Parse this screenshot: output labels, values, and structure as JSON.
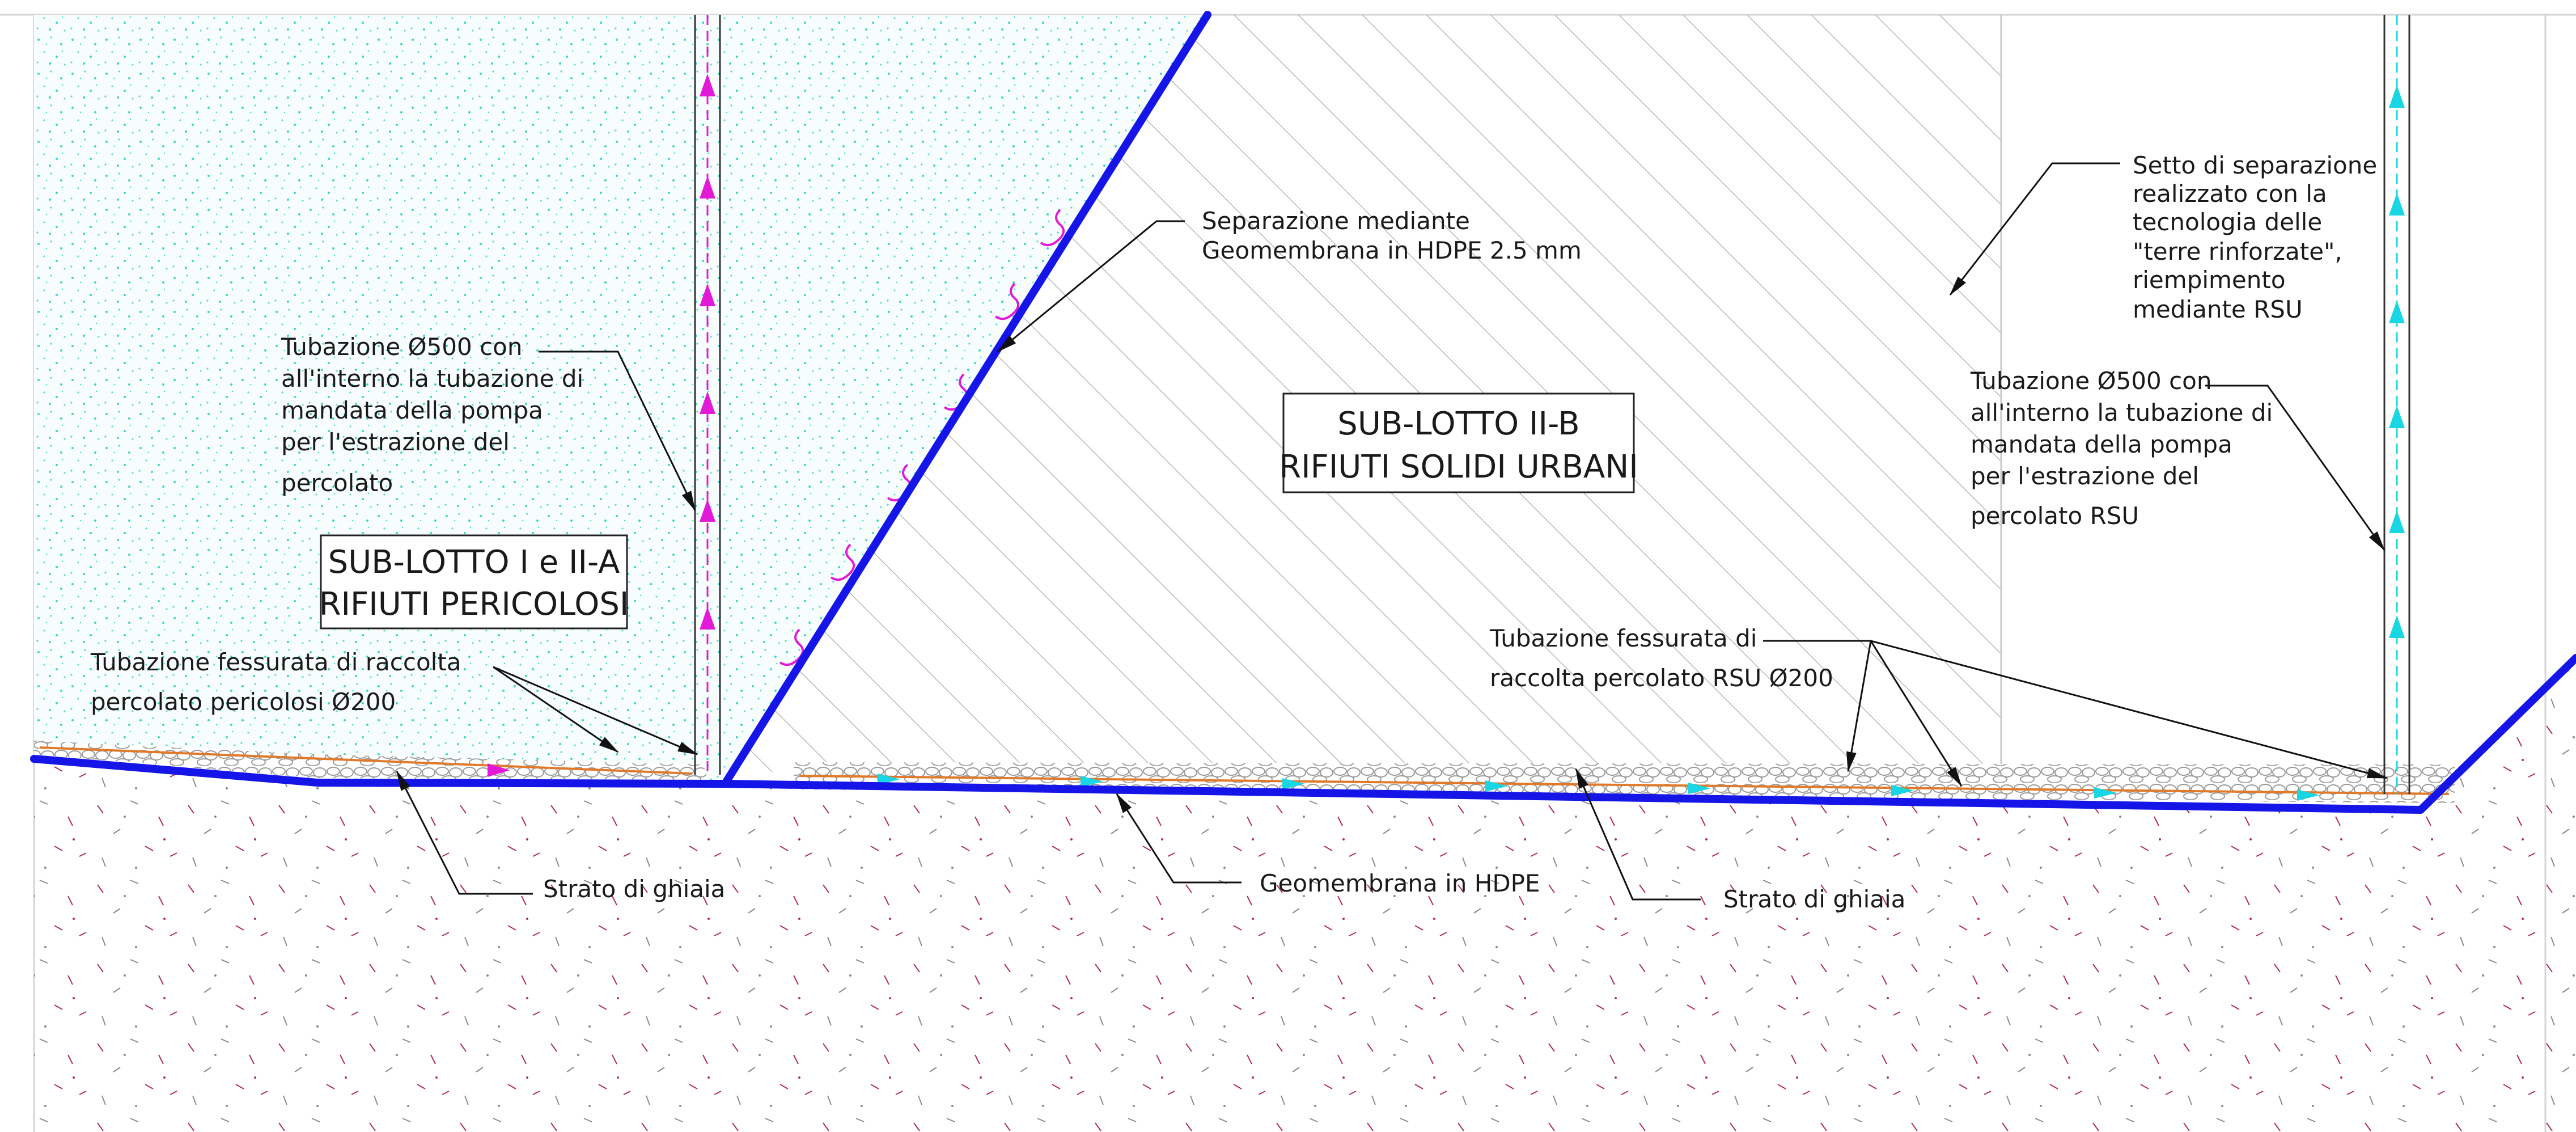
{
  "zones": {
    "left": {
      "title_line1": "SUB-LOTTO I e II-A",
      "title_line2": "RIFIUTI PERICOLOSI",
      "fill_color": "#3ed6c3"
    },
    "middle": {
      "title_line1": "SUB-LOTTO II-B",
      "title_line2": "RIFIUTI SOLIDI URBANI"
    }
  },
  "labels": {
    "pipe_left": [
      "Tubazione Ø500 con",
      "all'interno la tubazione di",
      "mandata della pompa",
      "per l'estrazione del",
      "percolato"
    ],
    "pipe_right": [
      "Tubazione Ø500 con",
      "all'interno la tubazione di",
      "mandata della pompa",
      "per l'estrazione del",
      "percolato RSU"
    ],
    "separation_membrane": [
      "Separazione mediante",
      "Geomembrana in HDPE 2.5 mm"
    ],
    "separation_wall": [
      "Setto di separazione",
      "realizzato con la",
      "tecnologia delle",
      "\"terre rinforzate\",",
      "riempimento",
      "mediante RSU"
    ],
    "slotted_pipe_hazardous": [
      "Tubazione fessurata di raccolta",
      "percolato pericolosi Ø200"
    ],
    "slotted_pipe_rsu": [
      "Tubazione fessurata di",
      "raccolta percolato RSU Ø200"
    ],
    "gravel_left": "Strato di ghiaia",
    "gravel_right": "Strato di ghiaia",
    "geomembrane": "Geomembrana in HDPE"
  },
  "colors": {
    "liner": "#1515e8",
    "pipe_hazardous": "#e21ad7",
    "pipe_rsu": "#18d6e3",
    "soil_speckle": "#b03050",
    "gravel": "#c8b27a"
  }
}
